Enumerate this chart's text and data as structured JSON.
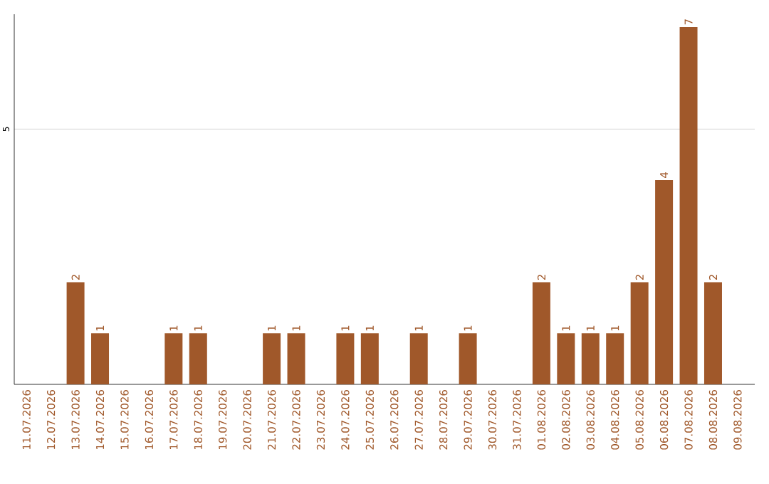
{
  "chart_data": {
    "type": "bar",
    "color": "#a0582a",
    "categories": [
      "11.07.2026",
      "12.07.2026",
      "13.07.2026",
      "14.07.2026",
      "15.07.2026",
      "16.07.2026",
      "17.07.2026",
      "18.07.2026",
      "19.07.2026",
      "20.07.2026",
      "21.07.2026",
      "22.07.2026",
      "23.07.2026",
      "24.07.2026",
      "25.07.2026",
      "26.07.2026",
      "27.07.2026",
      "28.07.2026",
      "29.07.2026",
      "30.07.2026",
      "31.07.2026",
      "01.08.2026",
      "02.08.2026",
      "03.08.2026",
      "04.08.2026",
      "05.08.2026",
      "06.08.2026",
      "07.08.2026",
      "08.08.2026",
      "09.08.2026"
    ],
    "values": [
      0,
      0,
      2,
      1,
      0,
      0,
      1,
      1,
      0,
      0,
      1,
      1,
      0,
      1,
      1,
      0,
      1,
      0,
      1,
      0,
      0,
      2,
      1,
      1,
      1,
      2,
      4,
      7,
      2,
      0
    ],
    "value_labels": [
      null,
      null,
      "2",
      "1",
      null,
      null,
      "1",
      "1",
      null,
      null,
      "1",
      "1",
      null,
      "1",
      "1",
      null,
      "1",
      null,
      "1",
      null,
      null,
      "2",
      "1",
      "1",
      "1",
      "2",
      "4",
      "7",
      "2",
      null
    ],
    "ylim": [
      0,
      7.25
    ],
    "yticks": [
      5
    ],
    "grid": "y"
  }
}
